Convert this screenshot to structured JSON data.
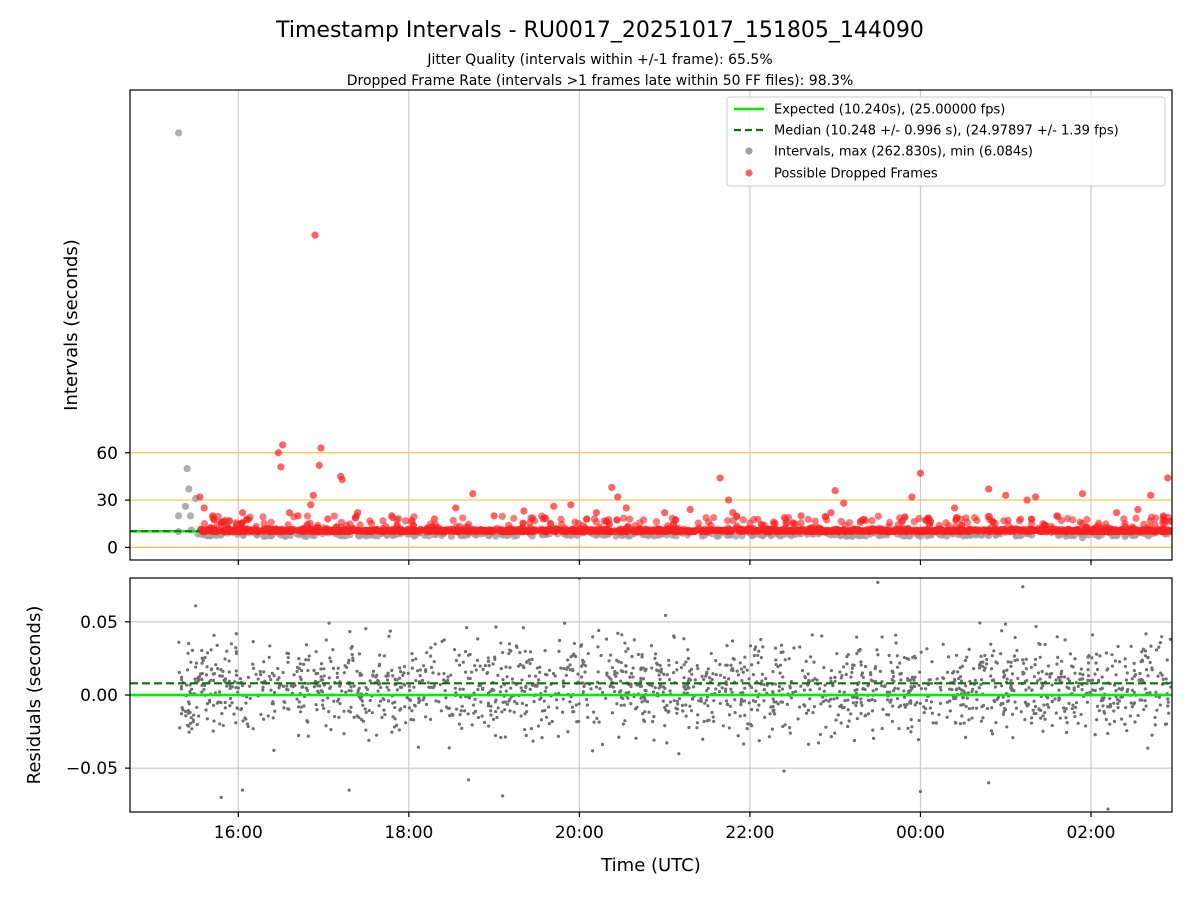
{
  "title": "Timestamp Intervals - RU0017_20251017_151805_144090",
  "subtitle_1": "Jitter Quality (intervals within +/-1 frame): 65.5%",
  "subtitle_2": "Dropped Frame Rate (intervals >1 frames late within 50 FF files): 98.3%",
  "colors": {
    "expected": "#00ee00",
    "median": "#007700",
    "intervals": "#a0a0a0",
    "dropped": "#ff2020",
    "residuals": "#707070",
    "threshold": "#ffc040",
    "grid": "#cccccc"
  },
  "chart_data": [
    {
      "type": "scatter",
      "ylabel": "Intervals (seconds)",
      "xlabel": "",
      "x_unit": "hours UTC since 2025-10-17 00:00",
      "xlim": [
        14.73,
        26.95
      ],
      "ylim": [
        -8,
        290
      ],
      "yticks": [
        0,
        30,
        60
      ],
      "ytick_labels": [
        "0",
        "30",
        "60"
      ],
      "threshold_lines": [
        0,
        30,
        60
      ],
      "grid": "vertical",
      "legend_position": "upper right",
      "legend": [
        "Expected (10.240s), (25.00000 fps)",
        "Median (10.248 +/- 0.996 s), (24.97897 +/- 1.39 fps)",
        "Intervals, max (262.830s), min (6.084s)",
        "Possible Dropped Frames"
      ],
      "series": [
        {
          "name": "Expected (10.240s), (25.00000 fps)",
          "kind": "line",
          "y": 10.24
        },
        {
          "name": "Median (10.248 +/- 0.996 s), (24.97897 +/- 1.39 fps)",
          "kind": "dashed",
          "y": 10.248
        },
        {
          "name": "Intervals, max (262.830s), min (6.084s)",
          "kind": "points",
          "points": [
            [
              15.3,
              262.83
            ],
            [
              15.3,
              20
            ],
            [
              15.3,
              10
            ],
            [
              15.4,
              50
            ],
            [
              15.42,
              37
            ],
            [
              15.38,
              26
            ],
            [
              15.45,
              11
            ],
            [
              15.5,
              31
            ],
            [
              15.44,
              20
            ],
            [
              16.3,
              7
            ],
            [
              16.55,
              7
            ],
            [
              16.8,
              7
            ],
            [
              17.2,
              7.5
            ],
            [
              18.5,
              7
            ],
            [
              20.5,
              7.5
            ],
            [
              23.2,
              7
            ],
            [
              24.8,
              7.5
            ],
            [
              25.9,
              6.1
            ],
            [
              26.4,
              7
            ]
          ]
        },
        {
          "name": "Possible Dropped Frames",
          "kind": "points",
          "dense_y": 10.5,
          "dense_from": 15.55,
          "dense_to": 26.95,
          "points": [
            [
              15.55,
              32
            ],
            [
              15.6,
              25
            ],
            [
              15.7,
              20
            ],
            [
              15.8,
              15
            ],
            [
              16.05,
              22
            ],
            [
              16.1,
              18
            ],
            [
              16.47,
              60
            ],
            [
              16.5,
              51
            ],
            [
              16.52,
              65
            ],
            [
              16.6,
              22
            ],
            [
              16.7,
              20
            ],
            [
              16.85,
              27
            ],
            [
              16.88,
              33
            ],
            [
              16.9,
              198
            ],
            [
              16.95,
              52
            ],
            [
              16.97,
              63
            ],
            [
              17.05,
              18
            ],
            [
              17.2,
              45
            ],
            [
              17.22,
              43
            ],
            [
              17.4,
              22
            ],
            [
              17.8,
              20
            ],
            [
              18.3,
              18
            ],
            [
              18.55,
              25
            ],
            [
              18.75,
              34
            ],
            [
              19.0,
              20
            ],
            [
              19.35,
              23
            ],
            [
              19.7,
              26
            ],
            [
              19.9,
              27
            ],
            [
              20.2,
              22
            ],
            [
              20.38,
              38
            ],
            [
              20.45,
              32
            ],
            [
              20.55,
              25
            ],
            [
              21.0,
              22
            ],
            [
              21.3,
              24
            ],
            [
              21.65,
              44
            ],
            [
              21.75,
              30
            ],
            [
              21.8,
              22
            ],
            [
              22.6,
              20
            ],
            [
              22.95,
              22
            ],
            [
              23.0,
              36
            ],
            [
              23.1,
              28
            ],
            [
              23.9,
              32
            ],
            [
              24.0,
              47
            ],
            [
              24.1,
              18
            ],
            [
              24.4,
              25
            ],
            [
              24.8,
              37
            ],
            [
              25.0,
              33
            ],
            [
              25.25,
              30
            ],
            [
              25.35,
              32
            ],
            [
              25.9,
              34
            ],
            [
              26.55,
              24
            ],
            [
              26.7,
              33
            ],
            [
              26.9,
              44
            ],
            [
              26.85,
              20
            ],
            [
              26.3,
              22
            ],
            [
              25.6,
              20
            ]
          ]
        }
      ]
    },
    {
      "type": "scatter",
      "ylabel": "Residuals (seconds)",
      "xlabel": "Time (UTC)",
      "xlim": [
        14.73,
        26.95
      ],
      "ylim": [
        -0.08,
        0.08
      ],
      "yticks": [
        -0.05,
        0.0,
        0.05
      ],
      "ytick_labels": [
        "−0.05",
        "0.00",
        "0.05"
      ],
      "xticks": [
        16,
        18,
        20,
        22,
        24,
        26
      ],
      "xtick_labels": [
        "16:00",
        "18:00",
        "20:00",
        "22:00",
        "00:00",
        "02:00"
      ],
      "grid": "both",
      "series": [
        {
          "name": "",
          "kind": "line",
          "y": 0.0
        },
        {
          "name": "",
          "kind": "dashed",
          "y": 0.008
        },
        {
          "name": "",
          "kind": "points",
          "count": 1850,
          "x_from": 15.3,
          "x_to": 26.95,
          "y_sd": 0.025,
          "outliers": [
            [
              15.5,
              0.061
            ],
            [
              15.8,
              -0.07
            ],
            [
              16.05,
              -0.065
            ],
            [
              17.3,
              -0.065
            ],
            [
              18.7,
              -0.058
            ],
            [
              19.1,
              -0.069
            ],
            [
              20.0,
              0.08
            ],
            [
              22.4,
              -0.052
            ],
            [
              23.5,
              0.077
            ],
            [
              24.0,
              -0.066
            ],
            [
              24.8,
              -0.06
            ],
            [
              25.2,
              0.074
            ],
            [
              26.2,
              -0.078
            ]
          ]
        }
      ]
    }
  ]
}
